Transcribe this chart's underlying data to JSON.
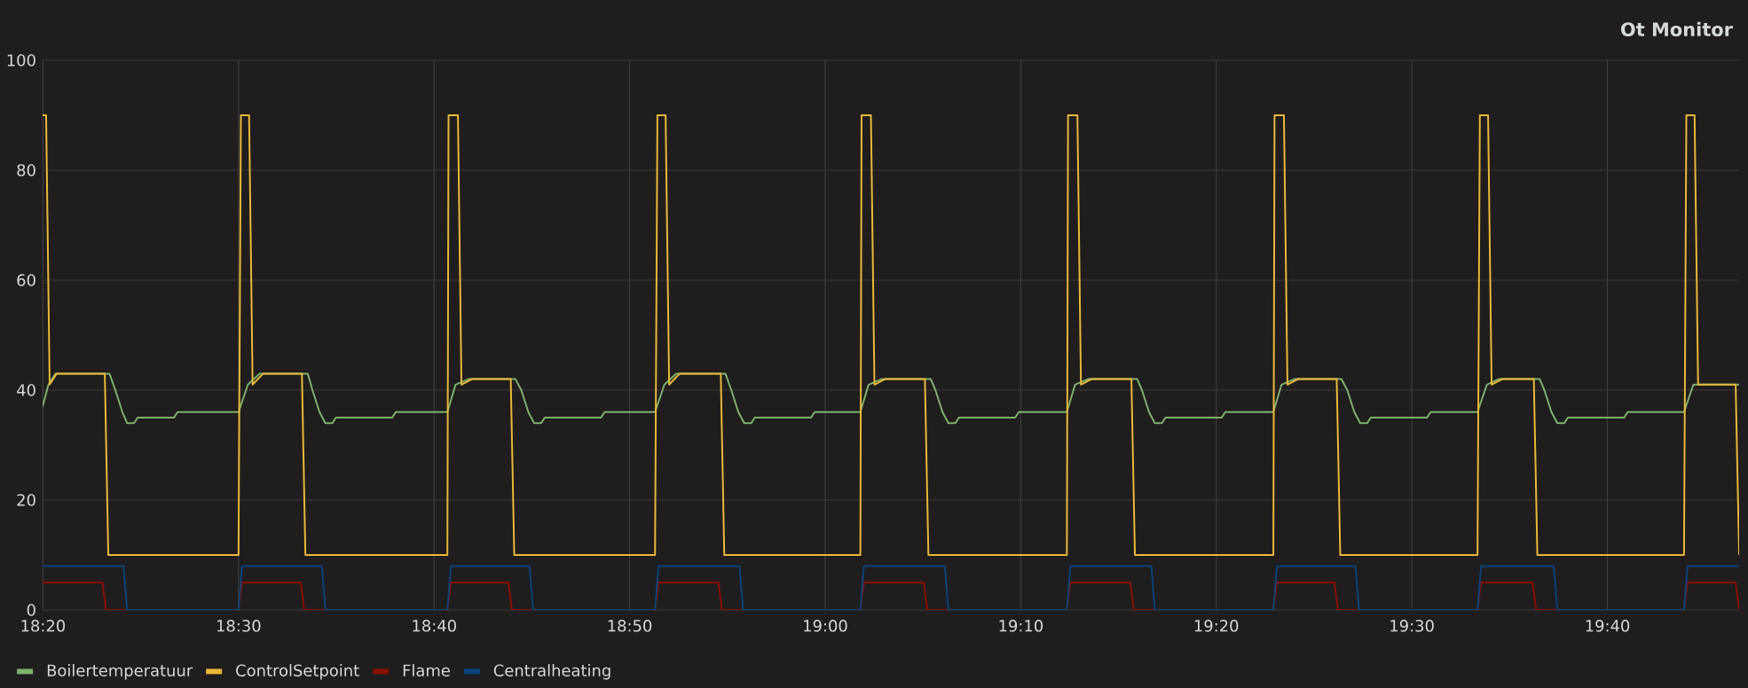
{
  "chart_data": {
    "type": "line",
    "title": "Ot Monitor",
    "xlim": [
      18.333,
      19.779
    ],
    "ylim": [
      0,
      100
    ],
    "xticks": [
      {
        "value": 18.3333,
        "label": "18:20"
      },
      {
        "value": 18.5,
        "label": "18:30"
      },
      {
        "value": 18.6667,
        "label": "18:40"
      },
      {
        "value": 18.8333,
        "label": "18:50"
      },
      {
        "value": 19.0,
        "label": "19:00"
      },
      {
        "value": 19.1667,
        "label": "19:10"
      },
      {
        "value": 19.3333,
        "label": "19:20"
      },
      {
        "value": 19.5,
        "label": "19:30"
      },
      {
        "value": 19.6667,
        "label": "19:40"
      }
    ],
    "yticks": [
      0,
      20,
      40,
      60,
      80,
      100
    ],
    "grid": true,
    "legend": "bottom left",
    "series": [
      {
        "name": "Boilertemperatuur",
        "color": "#7eb26d",
        "x": [
          18.333,
          18.338,
          18.344,
          18.39,
          18.395,
          18.401,
          18.405,
          18.411,
          18.414,
          18.445,
          18.448,
          18.5,
          18.508,
          18.518,
          18.559,
          18.563,
          18.569,
          18.574,
          18.58,
          18.583,
          18.631,
          18.634,
          18.678,
          18.685,
          18.696,
          18.736,
          18.741,
          18.747,
          18.752,
          18.758,
          18.761,
          18.809,
          18.812,
          18.855,
          18.863,
          18.873,
          18.915,
          18.92,
          18.926,
          18.931,
          18.937,
          18.94,
          18.988,
          18.991,
          19.03,
          19.037,
          19.048,
          19.09,
          19.094,
          19.1,
          19.105,
          19.111,
          19.114,
          19.162,
          19.165,
          19.206,
          19.213,
          19.224,
          19.266,
          19.27,
          19.276,
          19.281,
          19.287,
          19.29,
          19.338,
          19.341,
          19.382,
          19.389,
          19.4,
          19.44,
          19.445,
          19.451,
          19.456,
          19.462,
          19.465,
          19.513,
          19.516,
          19.556,
          19.564,
          19.574,
          19.609,
          19.613,
          19.619,
          19.624,
          19.63,
          19.633,
          19.681,
          19.684,
          19.732,
          19.74,
          19.779
        ],
        "values": [
          37,
          41,
          43,
          43,
          40,
          36,
          34,
          34,
          35,
          35,
          36,
          36,
          41,
          43,
          43,
          40,
          36,
          34,
          34,
          35,
          35,
          36,
          36,
          41,
          42,
          42,
          40,
          36,
          34,
          34,
          35,
          35,
          36,
          36,
          41,
          43,
          43,
          40,
          36,
          34,
          34,
          35,
          35,
          36,
          36,
          41,
          42,
          42,
          40,
          36,
          34,
          34,
          35,
          35,
          36,
          36,
          41,
          42,
          42,
          40,
          36,
          34,
          34,
          35,
          35,
          36,
          36,
          41,
          42,
          42,
          40,
          36,
          34,
          34,
          35,
          35,
          36,
          36,
          41,
          42,
          42,
          40,
          36,
          34,
          34,
          35,
          35,
          36,
          36,
          41,
          41
        ]
      },
      {
        "name": "ControlSetpoint",
        "color": "#eab839",
        "x": [
          18.333,
          18.336,
          18.339,
          18.345,
          18.386,
          18.389,
          18.5,
          18.502,
          18.509,
          18.512,
          18.521,
          18.554,
          18.557,
          18.678,
          18.679,
          18.687,
          18.69,
          18.699,
          18.732,
          18.735,
          18.855,
          18.857,
          18.864,
          18.867,
          18.876,
          18.911,
          18.914,
          19.03,
          19.031,
          19.039,
          19.042,
          19.051,
          19.085,
          19.088,
          19.206,
          19.207,
          19.215,
          19.218,
          19.227,
          19.261,
          19.264,
          19.382,
          19.383,
          19.391,
          19.394,
          19.403,
          19.436,
          19.439,
          19.556,
          19.558,
          19.565,
          19.568,
          19.577,
          19.604,
          19.607,
          19.732,
          19.734,
          19.741,
          19.744,
          19.776,
          19.779
        ],
        "values": [
          90,
          90,
          41,
          43,
          43,
          10,
          10,
          90,
          90,
          41,
          43,
          43,
          10,
          10,
          90,
          90,
          41,
          42,
          42,
          10,
          10,
          90,
          90,
          41,
          43,
          43,
          10,
          10,
          90,
          90,
          41,
          42,
          42,
          10,
          10,
          90,
          90,
          41,
          42,
          42,
          10,
          10,
          90,
          90,
          41,
          42,
          42,
          10,
          10,
          90,
          90,
          41,
          42,
          42,
          10,
          10,
          90,
          90,
          41,
          41,
          10
        ]
      },
      {
        "name": "Flame",
        "color": "#890f02",
        "x": [
          18.333,
          18.384,
          18.387,
          18.5,
          18.503,
          18.553,
          18.556,
          18.678,
          18.681,
          18.73,
          18.733,
          18.855,
          18.858,
          18.909,
          18.912,
          19.03,
          19.033,
          19.084,
          19.087,
          19.206,
          19.209,
          19.26,
          19.263,
          19.382,
          19.385,
          19.434,
          19.437,
          19.556,
          19.559,
          19.603,
          19.606,
          19.732,
          19.735,
          19.776,
          19.779
        ],
        "values": [
          5,
          5,
          0,
          0,
          5,
          5,
          0,
          0,
          5,
          5,
          0,
          0,
          5,
          5,
          0,
          0,
          5,
          5,
          0,
          0,
          5,
          5,
          0,
          0,
          5,
          5,
          0,
          0,
          5,
          5,
          0,
          0,
          5,
          5,
          0
        ]
      },
      {
        "name": "Centralheating",
        "color": "#0a437c",
        "x": [
          18.333,
          18.402,
          18.405,
          18.5,
          18.503,
          18.571,
          18.574,
          18.678,
          18.681,
          18.748,
          18.751,
          18.855,
          18.858,
          18.927,
          18.93,
          19.03,
          19.033,
          19.102,
          19.105,
          19.206,
          19.209,
          19.278,
          19.281,
          19.382,
          19.385,
          19.452,
          19.455,
          19.556,
          19.559,
          19.621,
          19.624,
          19.732,
          19.735,
          19.779
        ],
        "values": [
          8,
          8,
          0,
          0,
          8,
          8,
          0,
          0,
          8,
          8,
          0,
          0,
          8,
          8,
          0,
          0,
          8,
          8,
          0,
          0,
          8,
          8,
          0,
          0,
          8,
          8,
          0,
          0,
          8,
          8,
          0,
          0,
          8,
          8
        ]
      }
    ]
  }
}
